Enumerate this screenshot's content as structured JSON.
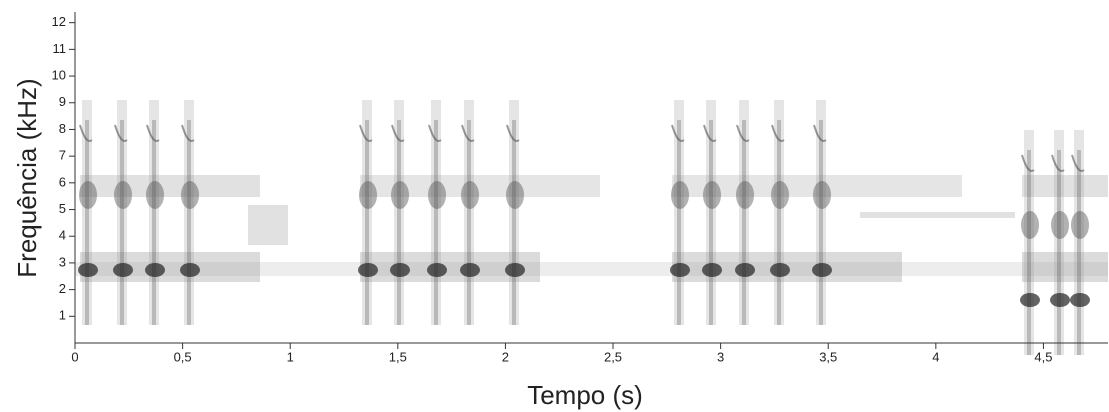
{
  "chart_data": {
    "type": "spectrogram",
    "xlabel": "Tempo (s)",
    "ylabel": "Frequência (kHz)",
    "xlim": [
      0,
      4.8
    ],
    "ylim": [
      0,
      12.4
    ],
    "xticks": [
      0,
      {
        "value": 0.5,
        "label": "0,5"
      },
      1,
      {
        "value": 1.5,
        "label": "1,5"
      },
      2,
      {
        "value": 2.5,
        "label": "2,5"
      },
      3,
      {
        "value": 3.5,
        "label": "3,5"
      },
      4,
      {
        "value": 4.5,
        "label": "4,5"
      }
    ],
    "yticks": [
      1,
      2,
      3,
      4,
      5,
      6,
      7,
      8,
      9,
      10,
      11,
      12
    ]
  }
}
